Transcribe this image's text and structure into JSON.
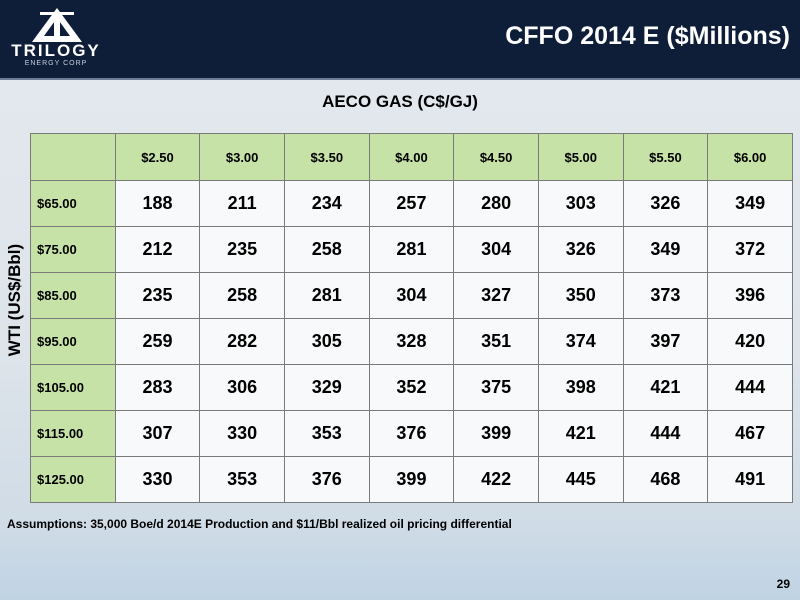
{
  "header": {
    "title": "CFFO 2014 E ($Millions)",
    "logo_name": "TRILOGY",
    "logo_sub": "ENERGY CORP"
  },
  "table": {
    "column_header_title": "AECO GAS (C$/GJ)",
    "row_header_title": "WTI (US$/Bbl)",
    "columns": [
      "$2.50",
      "$3.00",
      "$3.50",
      "$4.00",
      "$4.50",
      "$5.00",
      "$5.50",
      "$6.00"
    ],
    "rows": [
      {
        "label": "$65.00",
        "values": [
          188,
          211,
          234,
          257,
          280,
          303,
          326,
          349
        ]
      },
      {
        "label": "$75.00",
        "values": [
          212,
          235,
          258,
          281,
          304,
          326,
          349,
          372
        ]
      },
      {
        "label": "$85.00",
        "values": [
          235,
          258,
          281,
          304,
          327,
          350,
          373,
          396
        ]
      },
      {
        "label": "$95.00",
        "values": [
          259,
          282,
          305,
          328,
          351,
          374,
          397,
          420
        ]
      },
      {
        "label": "$105.00",
        "values": [
          283,
          306,
          329,
          352,
          375,
          398,
          421,
          444
        ]
      },
      {
        "label": "$115.00",
        "values": [
          307,
          330,
          353,
          376,
          399,
          421,
          444,
          467
        ]
      },
      {
        "label": "$125.00",
        "values": [
          330,
          353,
          376,
          399,
          422,
          445,
          468,
          491
        ]
      }
    ]
  },
  "footnote": "Assumptions: 35,000 Boe/d 2014E Production and $11/Bbl realized oil pricing differential",
  "page_number": "29"
}
